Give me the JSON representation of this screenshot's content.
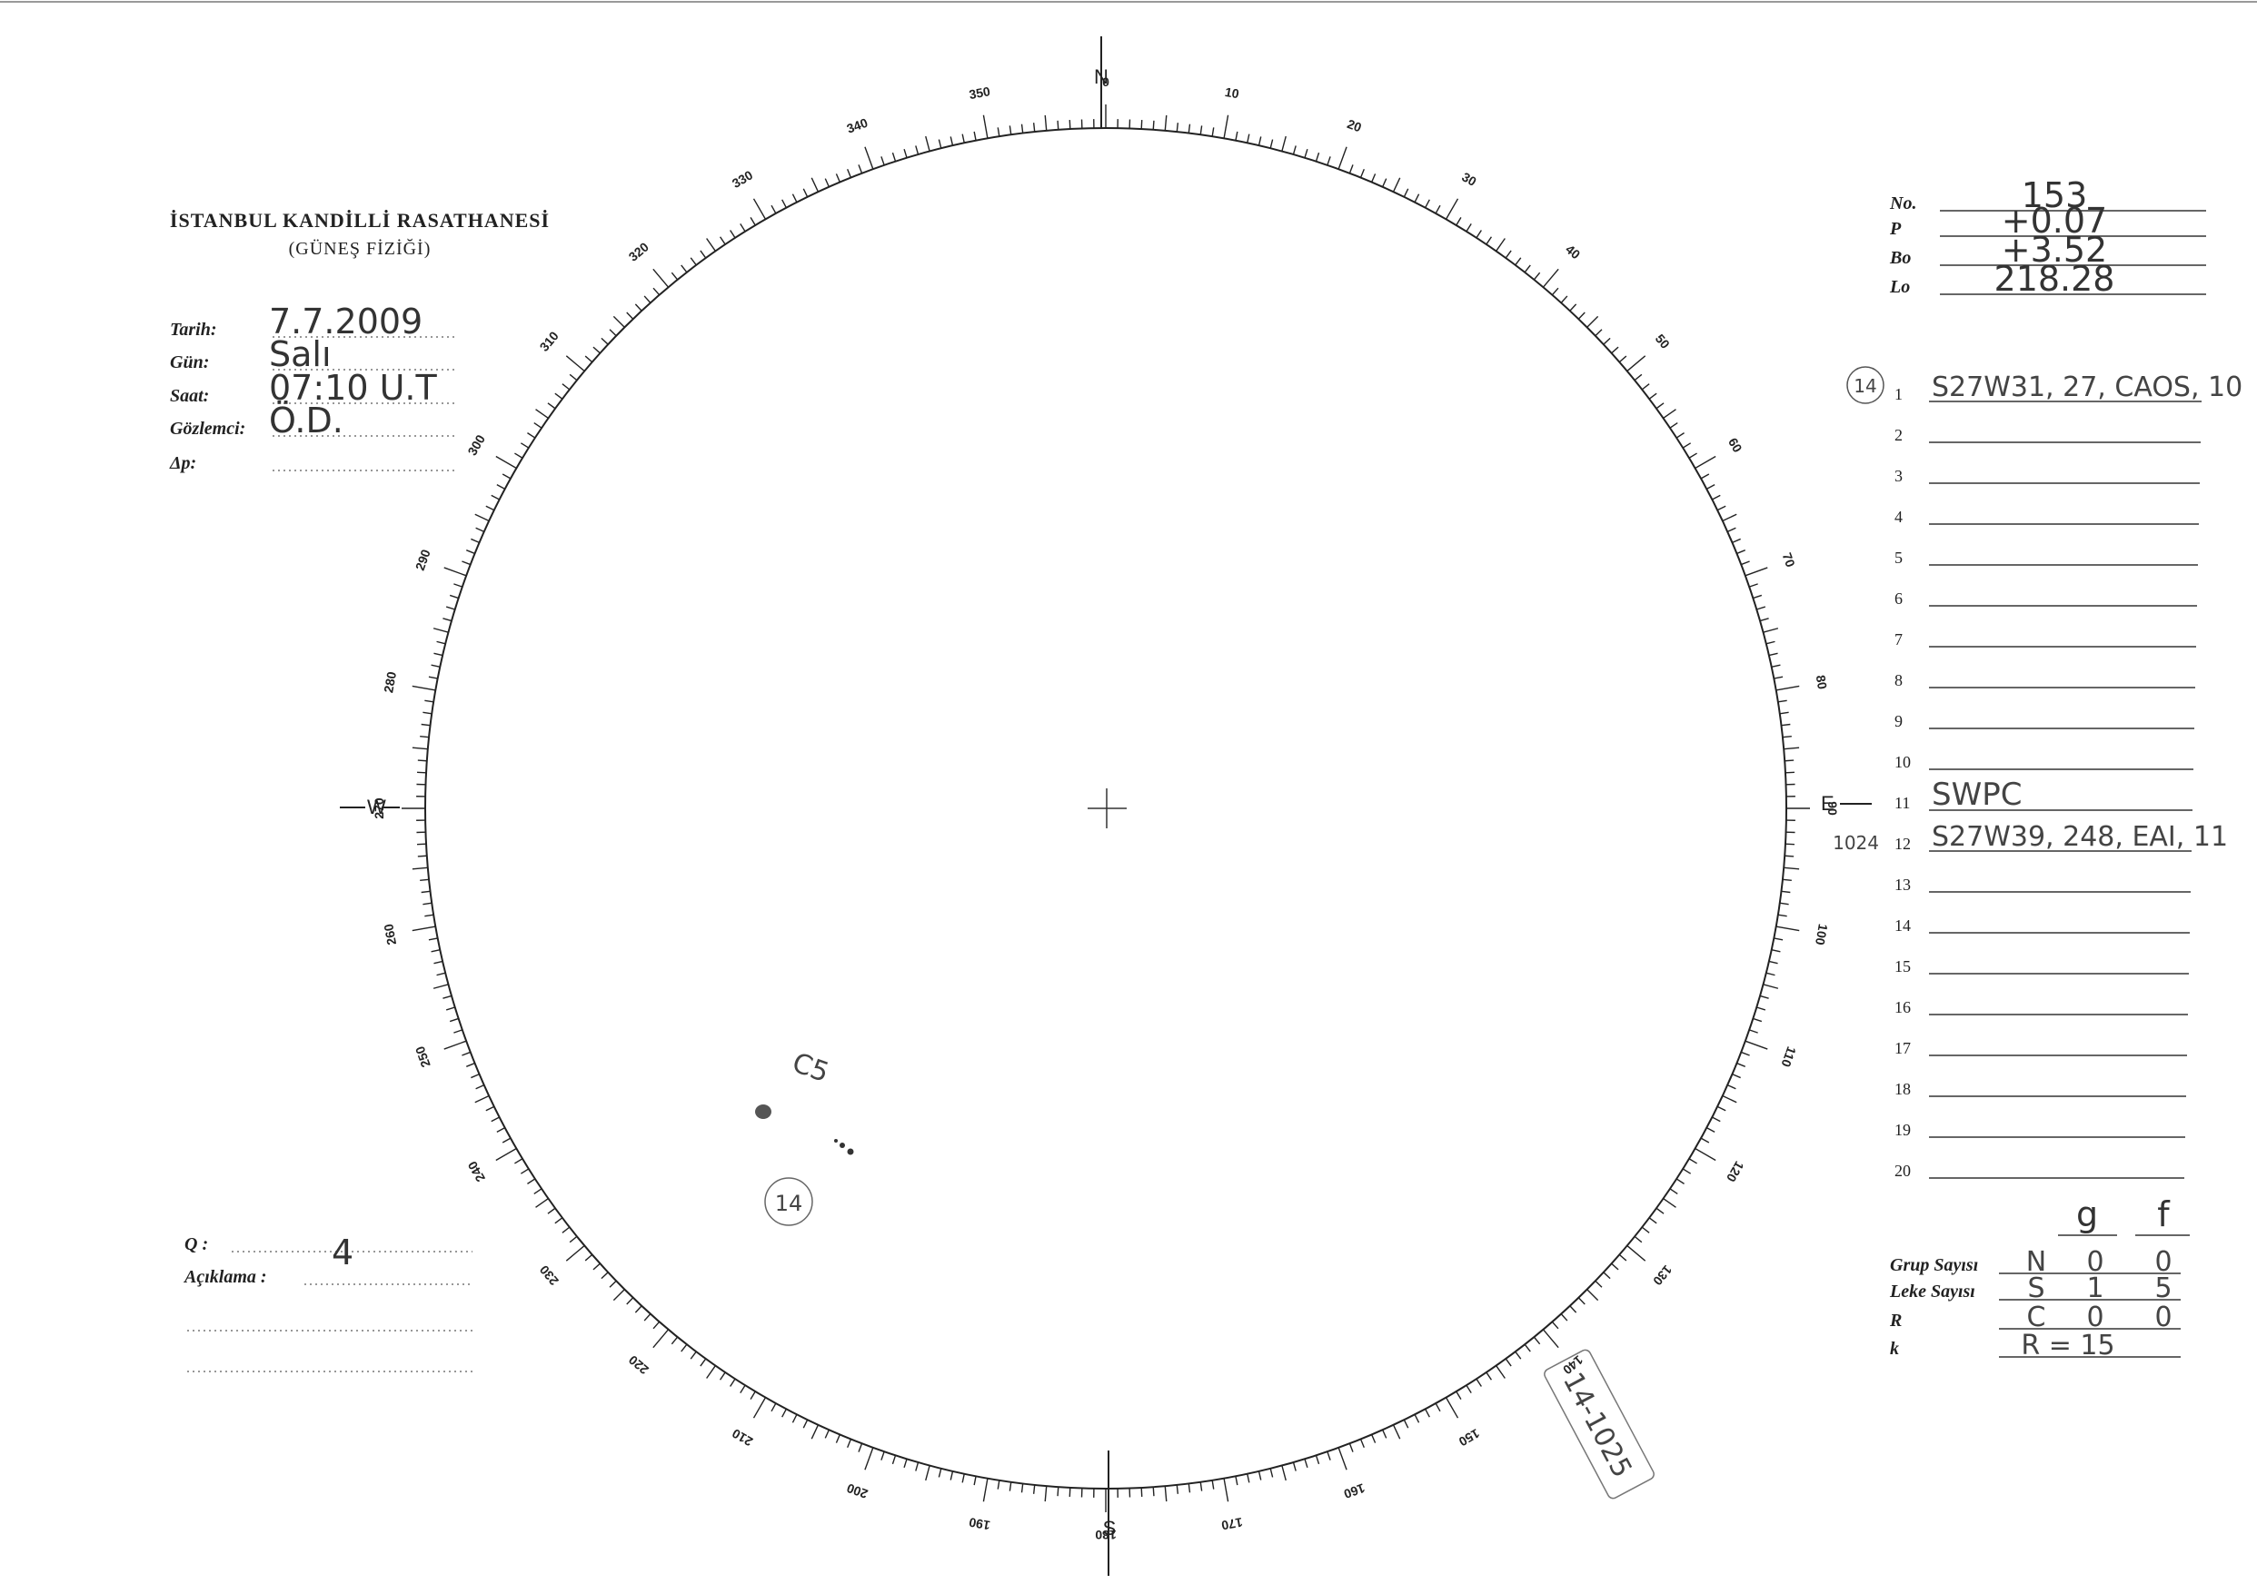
{
  "header": {
    "title": "İSTANBUL KANDİLLİ RASATHANESİ",
    "subtitle": "(GÜNEŞ FİZİĞİ)"
  },
  "observation": {
    "fields": [
      {
        "label": "Tarih:",
        "value": "7.7.2009"
      },
      {
        "label": "Gün:",
        "value": "Salı"
      },
      {
        "label": "Saat:",
        "value": "07:10 U.T"
      },
      {
        "label": "Gözlemci:",
        "value": "Ö.D."
      },
      {
        "label": "Δp:"
      }
    ]
  },
  "parameters": [
    {
      "label": "No.",
      "value": "153"
    },
    {
      "label": "P",
      "value": "+0.07"
    },
    {
      "label": "Bo",
      "value": "+3.52"
    },
    {
      "label": "Lo",
      "value": "218.28"
    }
  ],
  "groups": {
    "rows": [
      {
        "number": 1,
        "entry": "S27W31, 27, CAOS, 10",
        "note": "14"
      },
      {
        "number": 2
      },
      {
        "number": 3
      },
      {
        "number": 4
      },
      {
        "number": 5
      },
      {
        "number": 6
      },
      {
        "number": 7
      },
      {
        "number": 8
      },
      {
        "number": 9
      },
      {
        "number": 10
      },
      {
        "number": 11,
        "entry": "SWPC"
      },
      {
        "number": 12,
        "entry": "S27W39, 248, EAI, 11",
        "note": "1024"
      },
      {
        "number": 13
      },
      {
        "number": 14
      },
      {
        "number": 15
      },
      {
        "number": 16
      },
      {
        "number": 17
      },
      {
        "number": 18
      },
      {
        "number": 19
      },
      {
        "number": 20
      }
    ]
  },
  "counts": {
    "columns": [
      "g",
      "f"
    ],
    "rows": [
      {
        "label": "Grup Sayısı",
        "values": [
          "N",
          "0",
          "0"
        ]
      },
      {
        "label": "Leke Sayısı",
        "values": [
          "S",
          "1",
          "5"
        ]
      },
      {
        "label": "R",
        "values": [
          "C",
          "0",
          "0"
        ]
      },
      {
        "label": "k",
        "values": [
          "R = 15"
        ]
      }
    ]
  },
  "quality": {
    "label": "Q :",
    "value": "4"
  },
  "remarks": {
    "label": "Açıklama :"
  },
  "disk": {
    "directions": {
      "north": "N",
      "south": "S",
      "east": "E",
      "west": "W"
    },
    "degree_labels": [
      0,
      10,
      20,
      30,
      40,
      50,
      60,
      70,
      80,
      90,
      100,
      110,
      120,
      130,
      140,
      150,
      160,
      170,
      180,
      190,
      200,
      210,
      220,
      230,
      240,
      250,
      260,
      270,
      280,
      290,
      300,
      310,
      320,
      330,
      340,
      350
    ],
    "annotations": {
      "group_class": "C5",
      "group_number": "14",
      "stamp": "14-1025"
    }
  }
}
